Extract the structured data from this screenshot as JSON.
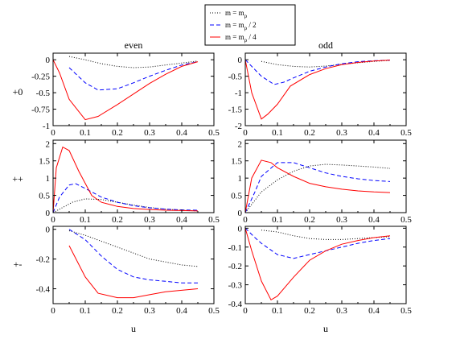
{
  "legend": {
    "entries": [
      {
        "label": "m = m",
        "sub": "ρ",
        "suffix": "",
        "color": "#000000",
        "dash": "1,2"
      },
      {
        "label": "m = m",
        "sub": "ρ",
        "suffix": " / 2",
        "color": "#0000ff",
        "dash": "5,3"
      },
      {
        "label": "m = m",
        "sub": "ρ",
        "suffix": " / 4",
        "color": "#ff0000",
        "dash": ""
      }
    ]
  },
  "column_titles": [
    "even",
    "odd"
  ],
  "row_labels": [
    "+0",
    "++",
    "+-"
  ],
  "xlabel": "u",
  "chart_data": [
    {
      "id": "plus0-even",
      "type": "line",
      "row": 0,
      "col": 0,
      "xlim": [
        0,
        0.5
      ],
      "ylim": [
        -1,
        0.1
      ],
      "xticks": [
        0,
        0.1,
        0.2,
        0.3,
        0.4,
        0.5
      ],
      "xticklabels": [
        "0",
        "0.1",
        "0.2",
        "0.3",
        "0.4",
        "0.5"
      ],
      "yticks": [
        0,
        -0.25,
        -0.5,
        -0.75,
        -1
      ],
      "yticklabels": [
        "0",
        "-0.25",
        "-0.5",
        "-0.75",
        "-1"
      ],
      "series": [
        {
          "style": 0,
          "x": [
            0.05,
            0.1,
            0.15,
            0.2,
            0.25,
            0.3,
            0.35,
            0.4,
            0.45
          ],
          "y": [
            0.05,
            0.0,
            -0.06,
            -0.1,
            -0.12,
            -0.11,
            -0.08,
            -0.05,
            -0.02
          ]
        },
        {
          "style": 1,
          "x": [
            0.05,
            0.1,
            0.14,
            0.2,
            0.25,
            0.3,
            0.35,
            0.4,
            0.45
          ],
          "y": [
            -0.12,
            -0.35,
            -0.46,
            -0.44,
            -0.35,
            -0.25,
            -0.16,
            -0.08,
            -0.03
          ]
        },
        {
          "style": 2,
          "x": [
            0.0,
            0.02,
            0.05,
            0.1,
            0.14,
            0.2,
            0.25,
            0.3,
            0.35,
            0.4,
            0.45
          ],
          "y": [
            0.0,
            -0.2,
            -0.6,
            -0.91,
            -0.86,
            -0.68,
            -0.52,
            -0.36,
            -0.22,
            -0.1,
            -0.03
          ]
        }
      ]
    },
    {
      "id": "plus0-odd",
      "type": "line",
      "row": 0,
      "col": 1,
      "xlim": [
        0,
        0.5
      ],
      "ylim": [
        -2,
        0.2
      ],
      "xticks": [
        0,
        0.1,
        0.2,
        0.3,
        0.4,
        0.5
      ],
      "xticklabels": [
        "0",
        "0.1",
        "0.2",
        "0.3",
        "0.4",
        "0.5"
      ],
      "yticks": [
        0,
        -0.5,
        -1,
        -1.5,
        -2
      ],
      "yticklabels": [
        "0",
        "-0.5",
        "-1",
        "-1.5",
        "-2"
      ],
      "series": [
        {
          "style": 0,
          "x": [
            0.05,
            0.1,
            0.15,
            0.2,
            0.25,
            0.3,
            0.35,
            0.4,
            0.45
          ],
          "y": [
            -0.05,
            -0.15,
            -0.2,
            -0.22,
            -0.19,
            -0.14,
            -0.09,
            -0.05,
            -0.02
          ]
        },
        {
          "style": 1,
          "x": [
            0.0,
            0.03,
            0.05,
            0.09,
            0.12,
            0.15,
            0.2,
            0.25,
            0.3,
            0.35,
            0.4,
            0.45
          ],
          "y": [
            0.0,
            -0.3,
            -0.5,
            -0.75,
            -0.68,
            -0.55,
            -0.35,
            -0.22,
            -0.12,
            -0.06,
            -0.03,
            -0.01
          ]
        },
        {
          "style": 2,
          "x": [
            0.0,
            0.02,
            0.05,
            0.07,
            0.1,
            0.14,
            0.2,
            0.25,
            0.3,
            0.35,
            0.4,
            0.45
          ],
          "y": [
            0.0,
            -1.0,
            -1.8,
            -1.65,
            -1.35,
            -0.8,
            -0.45,
            -0.27,
            -0.15,
            -0.08,
            -0.04,
            -0.01
          ]
        }
      ]
    },
    {
      "id": "plusplus-even",
      "type": "line",
      "row": 1,
      "col": 0,
      "xlim": [
        0,
        0.5
      ],
      "ylim": [
        0,
        2.1
      ],
      "xticks": [
        0,
        0.1,
        0.2,
        0.3,
        0.4,
        0.5
      ],
      "xticklabels": [
        "0",
        "0.1",
        "0.2",
        "0.3",
        "0.4",
        "0.5"
      ],
      "yticks": [
        0,
        0.5,
        1,
        1.5,
        2
      ],
      "yticklabels": [
        "0",
        "0.5",
        "1",
        "1.5",
        "2"
      ],
      "series": [
        {
          "style": 0,
          "x": [
            0.0,
            0.03,
            0.06,
            0.1,
            0.15,
            0.2,
            0.25,
            0.3,
            0.35,
            0.4,
            0.45
          ],
          "y": [
            0.0,
            0.15,
            0.3,
            0.4,
            0.38,
            0.3,
            0.22,
            0.15,
            0.1,
            0.07,
            0.05
          ]
        },
        {
          "style": 1,
          "x": [
            0.0,
            0.02,
            0.05,
            0.07,
            0.1,
            0.15,
            0.2,
            0.25,
            0.3,
            0.35,
            0.4,
            0.45
          ],
          "y": [
            0.0,
            0.45,
            0.8,
            0.84,
            0.7,
            0.45,
            0.3,
            0.2,
            0.14,
            0.1,
            0.08,
            0.07
          ]
        },
        {
          "style": 2,
          "x": [
            0.0,
            0.01,
            0.03,
            0.05,
            0.08,
            0.12,
            0.15,
            0.2,
            0.25,
            0.3,
            0.35,
            0.4,
            0.45
          ],
          "y": [
            0.0,
            1.3,
            1.9,
            1.8,
            1.2,
            0.5,
            0.3,
            0.18,
            0.12,
            0.09,
            0.07,
            0.06,
            0.05
          ]
        }
      ]
    },
    {
      "id": "plusplus-odd",
      "type": "line",
      "row": 1,
      "col": 1,
      "xlim": [
        0,
        0.5
      ],
      "ylim": [
        0,
        2.1
      ],
      "xticks": [
        0,
        0.1,
        0.2,
        0.3,
        0.4,
        0.5
      ],
      "xticklabels": [
        "0",
        "0.1",
        "0.2",
        "0.3",
        "0.4",
        "0.5"
      ],
      "yticks": [
        0,
        0.5,
        1,
        1.5,
        2
      ],
      "yticklabels": [
        "0",
        "0.5",
        "1",
        "1.5",
        "2"
      ],
      "series": [
        {
          "style": 0,
          "x": [
            0.0,
            0.05,
            0.1,
            0.15,
            0.2,
            0.25,
            0.3,
            0.35,
            0.4,
            0.45
          ],
          "y": [
            0.0,
            0.6,
            0.95,
            1.2,
            1.35,
            1.4,
            1.38,
            1.35,
            1.32,
            1.28
          ]
        },
        {
          "style": 1,
          "x": [
            0.0,
            0.03,
            0.05,
            0.1,
            0.15,
            0.2,
            0.25,
            0.3,
            0.35,
            0.4,
            0.45
          ],
          "y": [
            0.0,
            0.6,
            1.05,
            1.45,
            1.45,
            1.3,
            1.15,
            1.05,
            0.98,
            0.93,
            0.9
          ]
        },
        {
          "style": 2,
          "x": [
            0.0,
            0.02,
            0.05,
            0.08,
            0.1,
            0.15,
            0.2,
            0.25,
            0.3,
            0.35,
            0.4,
            0.45
          ],
          "y": [
            0.0,
            1.0,
            1.52,
            1.45,
            1.3,
            1.05,
            0.85,
            0.75,
            0.68,
            0.63,
            0.6,
            0.58
          ]
        }
      ]
    },
    {
      "id": "plusminus-even",
      "type": "line",
      "row": 2,
      "col": 0,
      "xlim": [
        0,
        0.5
      ],
      "ylim": [
        -0.5,
        0.02
      ],
      "xticks": [
        0,
        0.1,
        0.2,
        0.3,
        0.4,
        0.5
      ],
      "xticklabels": [
        "0",
        "0.1",
        "0.2",
        "0.3",
        "0.4",
        "0.5"
      ],
      "yticks": [
        0,
        -0.2,
        -0.4
      ],
      "yticklabels": [
        "0",
        "-0.2",
        "-0.4"
      ],
      "series": [
        {
          "style": 0,
          "x": [
            0.05,
            0.1,
            0.15,
            0.2,
            0.25,
            0.3,
            0.35,
            0.4,
            0.45
          ],
          "y": [
            -0.01,
            -0.04,
            -0.08,
            -0.12,
            -0.16,
            -0.2,
            -0.22,
            -0.24,
            -0.25
          ]
        },
        {
          "style": 1,
          "x": [
            0.05,
            0.1,
            0.15,
            0.2,
            0.25,
            0.3,
            0.35,
            0.4,
            0.45
          ],
          "y": [
            0.0,
            -0.07,
            -0.18,
            -0.27,
            -0.32,
            -0.34,
            -0.35,
            -0.36,
            -0.36
          ]
        },
        {
          "style": 2,
          "x": [
            0.05,
            0.1,
            0.14,
            0.2,
            0.25,
            0.3,
            0.35,
            0.4,
            0.45
          ],
          "y": [
            -0.11,
            -0.32,
            -0.43,
            -0.46,
            -0.46,
            -0.44,
            -0.42,
            -0.41,
            -0.4
          ]
        }
      ]
    },
    {
      "id": "plusminus-odd",
      "type": "line",
      "row": 2,
      "col": 1,
      "xlim": [
        0,
        0.5
      ],
      "ylim": [
        -0.4,
        0.01
      ],
      "xticks": [
        0,
        0.1,
        0.2,
        0.3,
        0.4,
        0.5
      ],
      "xticklabels": [
        "0",
        "0.1",
        "0.2",
        "0.3",
        "0.4",
        "0.5"
      ],
      "yticks": [
        0,
        -0.1,
        -0.2,
        -0.3,
        -0.4
      ],
      "yticklabels": [
        "0",
        "-0.1",
        "-0.2",
        "-0.3",
        "-0.4"
      ],
      "series": [
        {
          "style": 0,
          "x": [
            0.05,
            0.1,
            0.15,
            0.2,
            0.25,
            0.3,
            0.35,
            0.4,
            0.45
          ],
          "y": [
            -0.01,
            -0.02,
            -0.04,
            -0.055,
            -0.06,
            -0.06,
            -0.055,
            -0.05,
            -0.045
          ]
        },
        {
          "style": 1,
          "x": [
            0.0,
            0.03,
            0.05,
            0.1,
            0.15,
            0.2,
            0.25,
            0.3,
            0.35,
            0.4,
            0.45
          ],
          "y": [
            0.0,
            -0.05,
            -0.08,
            -0.14,
            -0.16,
            -0.14,
            -0.12,
            -0.1,
            -0.08,
            -0.065,
            -0.055
          ]
        },
        {
          "style": 2,
          "x": [
            0.0,
            0.02,
            0.05,
            0.08,
            0.1,
            0.15,
            0.2,
            0.25,
            0.3,
            0.35,
            0.4,
            0.45
          ],
          "y": [
            0.0,
            -0.12,
            -0.28,
            -0.38,
            -0.36,
            -0.26,
            -0.17,
            -0.12,
            -0.085,
            -0.065,
            -0.05,
            -0.04
          ]
        }
      ]
    }
  ]
}
